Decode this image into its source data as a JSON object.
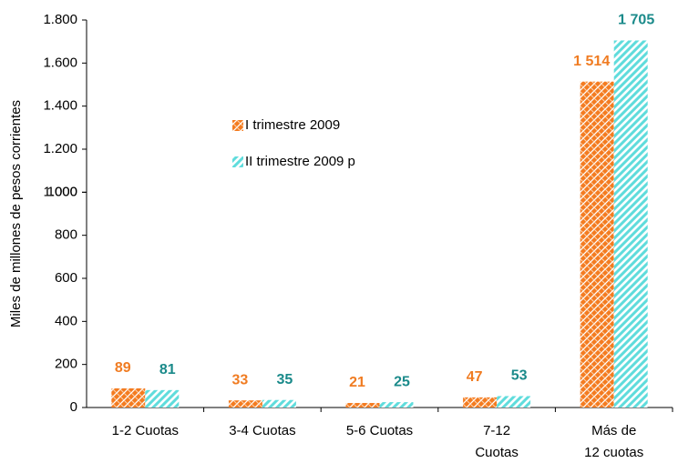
{
  "chart_data": {
    "type": "bar",
    "y_label": "Miles de millones de pesos corrientes",
    "categories": [
      "1-2 Cuotas",
      "3-4 Cuotas",
      "5-6 Cuotas",
      "7-12 Cuotas",
      "Más de 12 cuotas"
    ],
    "series": [
      {
        "name": "I trimestre 2009",
        "color": "#f47b20",
        "label_color": "#f07c22",
        "pattern": "crosshatch",
        "values": [
          89,
          33,
          21,
          47,
          1514
        ],
        "value_labels": [
          "89",
          "33",
          "21",
          "47",
          "1 514"
        ]
      },
      {
        "name": "II trimestre 2009 p",
        "color": "#5fdcdc",
        "label_color": "#1a8a8a",
        "pattern": "diagonal",
        "values": [
          81,
          35,
          25,
          53,
          1705
        ],
        "value_labels": [
          "81",
          "35",
          "25",
          "53",
          "1 705"
        ]
      }
    ],
    "ylim": [
      0,
      1800
    ],
    "yticks": [
      0,
      200,
      400,
      600,
      800,
      1000,
      {
        "value": 1000,
        "label": "1.000"
      },
      {
        "value": 1200,
        "label": "1.200"
      },
      {
        "value": 1400,
        "label": "1.400"
      },
      {
        "value": 1600,
        "label": "1.600"
      },
      {
        "value": 1800,
        "label": "1.800"
      }
    ],
    "grid": false
  }
}
